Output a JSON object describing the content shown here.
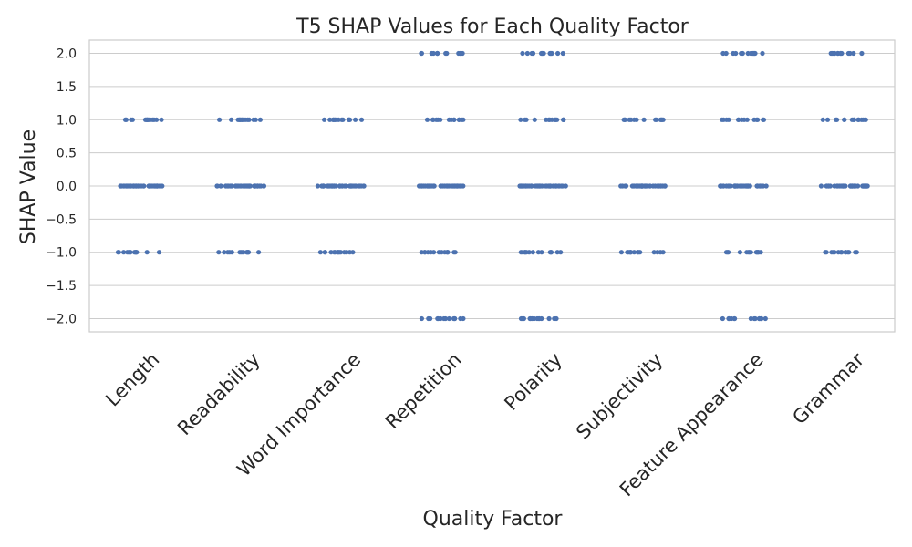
{
  "chart_data": {
    "type": "scatter",
    "title": "T5 SHAP Values for Each Quality Factor",
    "xlabel": "Quality Factor",
    "ylabel": "SHAP Value",
    "ylim": [
      -2.2,
      2.2
    ],
    "yticks": [
      "2.0",
      "1.5",
      "1.0",
      "0.5",
      "0.0",
      "−0.5",
      "−1.0",
      "−1.5",
      "−2.0"
    ],
    "ytick_values": [
      2.0,
      1.5,
      1.0,
      0.5,
      0.0,
      -0.5,
      -1.0,
      -1.5,
      -2.0
    ],
    "grid": true,
    "point_color": "#4c72b0",
    "categories": [
      "Length",
      "Readability",
      "Word Importance",
      "Repetition",
      "Polarity",
      "Subjectivity",
      "Feature Appearance",
      "Grammar"
    ],
    "observed_values": [
      [
        1,
        0,
        -1
      ],
      [
        1,
        0,
        -1
      ],
      [
        1,
        0,
        -1
      ],
      [
        2,
        1,
        0,
        -1,
        -2
      ],
      [
        2,
        1,
        0,
        -1,
        -2
      ],
      [
        1,
        0,
        -1
      ],
      [
        2,
        1,
        0,
        -1,
        -2
      ],
      [
        2,
        1,
        0,
        -1
      ]
    ]
  }
}
